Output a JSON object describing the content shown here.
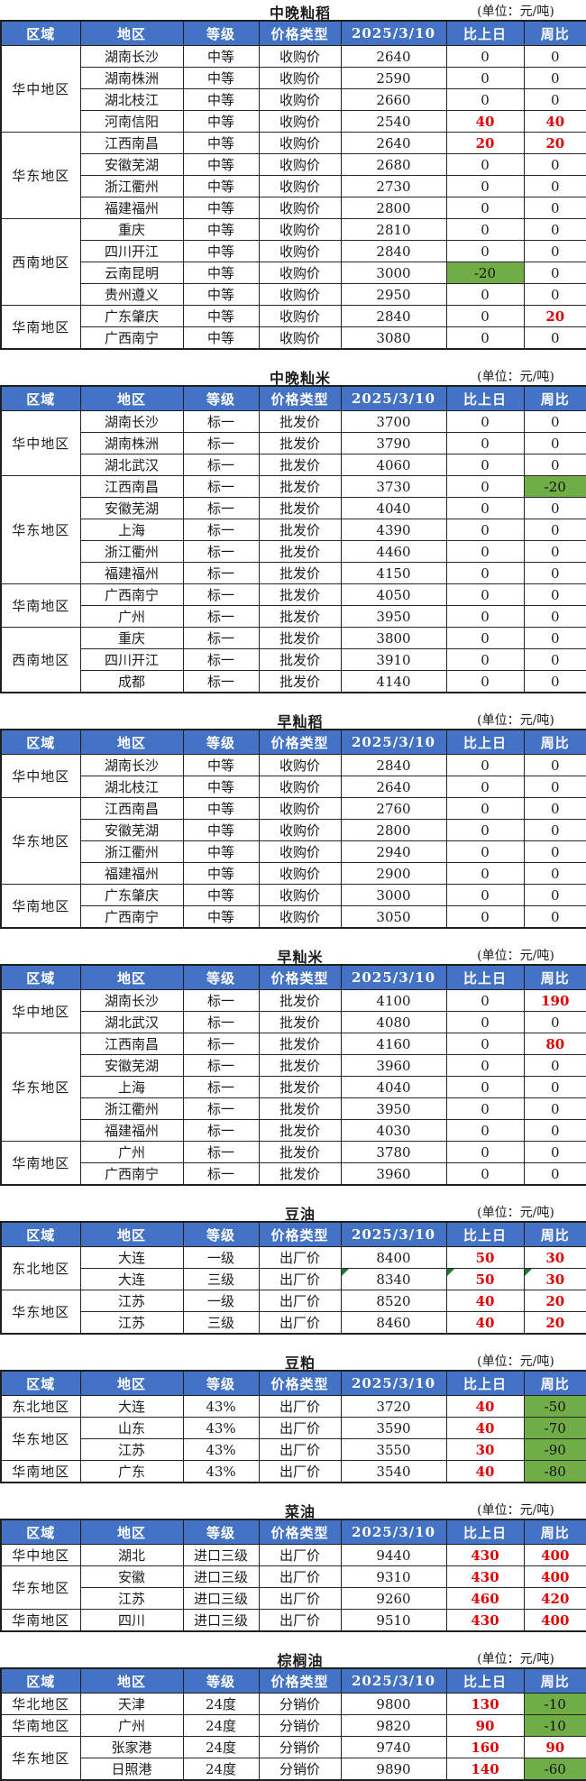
{
  "unit_label": "(单位：元/吨)",
  "columns": [
    "区域",
    "地区",
    "等级",
    "价格类型",
    "2025/3/10",
    "比上日",
    "周比"
  ],
  "colors": {
    "header_bg": "#4472C4",
    "header_text": "#FFFFFF",
    "increase_text": "#E00000",
    "decrease_bg": "#70AD47",
    "border": "#1F1F1F",
    "flag_corner": "#1E7A2E"
  },
  "tables": [
    {
      "title": "中晚籼稻",
      "groups": [
        {
          "region": "华中地区",
          "rows": [
            {
              "area": "湖南长沙",
              "grade": "中等",
              "type": "收购价",
              "price": "2640",
              "day": "0",
              "week": "0"
            },
            {
              "area": "湖南株洲",
              "grade": "中等",
              "type": "收购价",
              "price": "2590",
              "day": "0",
              "week": "0"
            },
            {
              "area": "湖北枝江",
              "grade": "中等",
              "type": "收购价",
              "price": "2660",
              "day": "0",
              "week": "0"
            },
            {
              "area": "河南信阳",
              "grade": "中等",
              "type": "收购价",
              "price": "2540",
              "day": "40",
              "week": "40"
            }
          ]
        },
        {
          "region": "华东地区",
          "rows": [
            {
              "area": "江西南昌",
              "grade": "中等",
              "type": "收购价",
              "price": "2640",
              "day": "20",
              "week": "20"
            },
            {
              "area": "安徽芜湖",
              "grade": "中等",
              "type": "收购价",
              "price": "2680",
              "day": "0",
              "week": "0"
            },
            {
              "area": "浙江衢州",
              "grade": "中等",
              "type": "收购价",
              "price": "2730",
              "day": "0",
              "week": "0"
            },
            {
              "area": "福建福州",
              "grade": "中等",
              "type": "收购价",
              "price": "2800",
              "day": "0",
              "week": "0"
            }
          ]
        },
        {
          "region": "西南地区",
          "rows": [
            {
              "area": "重庆",
              "grade": "中等",
              "type": "收购价",
              "price": "2810",
              "day": "0",
              "week": "0"
            },
            {
              "area": "四川开江",
              "grade": "中等",
              "type": "收购价",
              "price": "2840",
              "day": "0",
              "week": "0"
            },
            {
              "area": "云南昆明",
              "grade": "中等",
              "type": "收购价",
              "price": "3000",
              "day": "-20",
              "week": "0"
            },
            {
              "area": "贵州遵义",
              "grade": "中等",
              "type": "收购价",
              "price": "2950",
              "day": "0",
              "week": "0"
            }
          ]
        },
        {
          "region": "华南地区",
          "rows": [
            {
              "area": "广东肇庆",
              "grade": "中等",
              "type": "收购价",
              "price": "2840",
              "day": "0",
              "week": "20"
            },
            {
              "area": "广西南宁",
              "grade": "中等",
              "type": "收购价",
              "price": "3080",
              "day": "0",
              "week": "0"
            }
          ]
        }
      ]
    },
    {
      "title": "中晚籼米",
      "groups": [
        {
          "region": "华中地区",
          "rows": [
            {
              "area": "湖南长沙",
              "grade": "标一",
              "type": "批发价",
              "price": "3700",
              "day": "0",
              "week": "0"
            },
            {
              "area": "湖南株洲",
              "grade": "标一",
              "type": "批发价",
              "price": "3790",
              "day": "0",
              "week": "0"
            },
            {
              "area": "湖北武汉",
              "grade": "标一",
              "type": "批发价",
              "price": "4060",
              "day": "0",
              "week": "0"
            }
          ]
        },
        {
          "region": "华东地区",
          "rows": [
            {
              "area": "江西南昌",
              "grade": "标一",
              "type": "批发价",
              "price": "3730",
              "day": "0",
              "week": "-20"
            },
            {
              "area": "安徽芜湖",
              "grade": "标一",
              "type": "批发价",
              "price": "4040",
              "day": "0",
              "week": "0"
            },
            {
              "area": "上海",
              "grade": "标一",
              "type": "批发价",
              "price": "4390",
              "day": "0",
              "week": "0"
            },
            {
              "area": "浙江衢州",
              "grade": "标一",
              "type": "批发价",
              "price": "4460",
              "day": "0",
              "week": "0"
            },
            {
              "area": "福建福州",
              "grade": "标一",
              "type": "批发价",
              "price": "4150",
              "day": "0",
              "week": "0"
            }
          ]
        },
        {
          "region": "华南地区",
          "rows": [
            {
              "area": "广西南宁",
              "grade": "标一",
              "type": "批发价",
              "price": "4050",
              "day": "0",
              "week": "0"
            },
            {
              "area": "广州",
              "grade": "标一",
              "type": "批发价",
              "price": "3950",
              "day": "0",
              "week": "0"
            }
          ]
        },
        {
          "region": "西南地区",
          "rows": [
            {
              "area": "重庆",
              "grade": "标一",
              "type": "批发价",
              "price": "3800",
              "day": "0",
              "week": "0"
            },
            {
              "area": "四川开江",
              "grade": "标一",
              "type": "批发价",
              "price": "3910",
              "day": "0",
              "week": "0"
            },
            {
              "area": "成都",
              "grade": "标一",
              "type": "批发价",
              "price": "4140",
              "day": "0",
              "week": "0"
            }
          ]
        }
      ]
    },
    {
      "title": "早籼稻",
      "groups": [
        {
          "region": "华中地区",
          "rows": [
            {
              "area": "湖南长沙",
              "grade": "中等",
              "type": "收购价",
              "price": "2840",
              "day": "0",
              "week": "0"
            },
            {
              "area": "湖北枝江",
              "grade": "中等",
              "type": "收购价",
              "price": "2640",
              "day": "0",
              "week": "0"
            }
          ]
        },
        {
          "region": "华东地区",
          "rows": [
            {
              "area": "江西南昌",
              "grade": "中等",
              "type": "收购价",
              "price": "2760",
              "day": "0",
              "week": "0"
            },
            {
              "area": "安徽芜湖",
              "grade": "中等",
              "type": "收购价",
              "price": "2800",
              "day": "0",
              "week": "0"
            },
            {
              "area": "浙江衢州",
              "grade": "中等",
              "type": "收购价",
              "price": "2940",
              "day": "0",
              "week": "0"
            },
            {
              "area": "福建福州",
              "grade": "中等",
              "type": "收购价",
              "price": "2900",
              "day": "0",
              "week": "0"
            }
          ]
        },
        {
          "region": "华南地区",
          "rows": [
            {
              "area": "广东肇庆",
              "grade": "中等",
              "type": "收购价",
              "price": "3000",
              "day": "0",
              "week": "0"
            },
            {
              "area": "广西南宁",
              "grade": "中等",
              "type": "收购价",
              "price": "3050",
              "day": "0",
              "week": "0"
            }
          ]
        }
      ]
    },
    {
      "title": "早籼米",
      "groups": [
        {
          "region": "华中地区",
          "rows": [
            {
              "area": "湖南长沙",
              "grade": "标一",
              "type": "批发价",
              "price": "4100",
              "day": "0",
              "week": "190"
            },
            {
              "area": "湖北武汉",
              "grade": "标一",
              "type": "批发价",
              "price": "4080",
              "day": "0",
              "week": "0"
            }
          ]
        },
        {
          "region": "华东地区",
          "rows": [
            {
              "area": "江西南昌",
              "grade": "标一",
              "type": "批发价",
              "price": "4160",
              "day": "0",
              "week": "80"
            },
            {
              "area": "安徽芜湖",
              "grade": "标一",
              "type": "批发价",
              "price": "3960",
              "day": "0",
              "week": "0"
            },
            {
              "area": "上海",
              "grade": "标一",
              "type": "批发价",
              "price": "4040",
              "day": "0",
              "week": "0"
            },
            {
              "area": "浙江衢州",
              "grade": "标一",
              "type": "批发价",
              "price": "3950",
              "day": "0",
              "week": "0"
            },
            {
              "area": "福建福州",
              "grade": "标一",
              "type": "批发价",
              "price": "4030",
              "day": "0",
              "week": "0"
            }
          ]
        },
        {
          "region": "华南地区",
          "rows": [
            {
              "area": "广州",
              "grade": "标一",
              "type": "批发价",
              "price": "3780",
              "day": "0",
              "week": "0"
            },
            {
              "area": "广西南宁",
              "grade": "标一",
              "type": "批发价",
              "price": "3960",
              "day": "0",
              "week": "0"
            }
          ]
        }
      ]
    },
    {
      "title": "豆油",
      "groups": [
        {
          "region": "东北地区",
          "rows": [
            {
              "area": "大连",
              "grade": "一级",
              "type": "出厂价",
              "price": "8400",
              "day": "50",
              "week": "30"
            },
            {
              "area": "大连",
              "grade": "三级",
              "type": "出厂价",
              "price": "8340",
              "day": "50",
              "week": "30",
              "flag": true
            }
          ]
        },
        {
          "region": "华东地区",
          "rows": [
            {
              "area": "江苏",
              "grade": "一级",
              "type": "出厂价",
              "price": "8520",
              "day": "40",
              "week": "20"
            },
            {
              "area": "江苏",
              "grade": "三级",
              "type": "出厂价",
              "price": "8460",
              "day": "40",
              "week": "20"
            }
          ]
        }
      ]
    },
    {
      "title": "豆粕",
      "groups": [
        {
          "region": "东北地区",
          "rows": [
            {
              "area": "大连",
              "grade": "43%",
              "type": "出厂价",
              "price": "3720",
              "day": "40",
              "week": "-50"
            }
          ]
        },
        {
          "region": "华东地区",
          "rows": [
            {
              "area": "山东",
              "grade": "43%",
              "type": "出厂价",
              "price": "3590",
              "day": "40",
              "week": "-70"
            },
            {
              "area": "江苏",
              "grade": "43%",
              "type": "出厂价",
              "price": "3550",
              "day": "30",
              "week": "-90"
            }
          ]
        },
        {
          "region": "华南地区",
          "rows": [
            {
              "area": "广东",
              "grade": "43%",
              "type": "出厂价",
              "price": "3540",
              "day": "40",
              "week": "-80"
            }
          ]
        }
      ]
    },
    {
      "title": "菜油",
      "groups": [
        {
          "region": "华中地区",
          "rows": [
            {
              "area": "湖北",
              "grade": "进口三级",
              "type": "出厂价",
              "price": "9440",
              "day": "430",
              "week": "400"
            }
          ]
        },
        {
          "region": "华东地区",
          "rows": [
            {
              "area": "安徽",
              "grade": "进口三级",
              "type": "出厂价",
              "price": "9310",
              "day": "430",
              "week": "400"
            },
            {
              "area": "江苏",
              "grade": "进口三级",
              "type": "出厂价",
              "price": "9260",
              "day": "460",
              "week": "420"
            }
          ]
        },
        {
          "region": "华南地区",
          "rows": [
            {
              "area": "四川",
              "grade": "进口三级",
              "type": "出厂价",
              "price": "9510",
              "day": "430",
              "week": "400"
            }
          ]
        }
      ]
    },
    {
      "title": "棕榈油",
      "groups": [
        {
          "region": "华北地区",
          "rows": [
            {
              "area": "天津",
              "grade": "24度",
              "type": "分销价",
              "price": "9800",
              "day": "130",
              "week": "-10"
            }
          ]
        },
        {
          "region": "华南地区",
          "rows": [
            {
              "area": "广州",
              "grade": "24度",
              "type": "分销价",
              "price": "9820",
              "day": "90",
              "week": "-10"
            }
          ]
        },
        {
          "region": "华东地区",
          "rows": [
            {
              "area": "张家港",
              "grade": "24度",
              "type": "分销价",
              "price": "9740",
              "day": "160",
              "week": "90"
            },
            {
              "area": "日照港",
              "grade": "24度",
              "type": "分销价",
              "price": "9890",
              "day": "140",
              "week": "-60"
            }
          ]
        }
      ]
    }
  ]
}
